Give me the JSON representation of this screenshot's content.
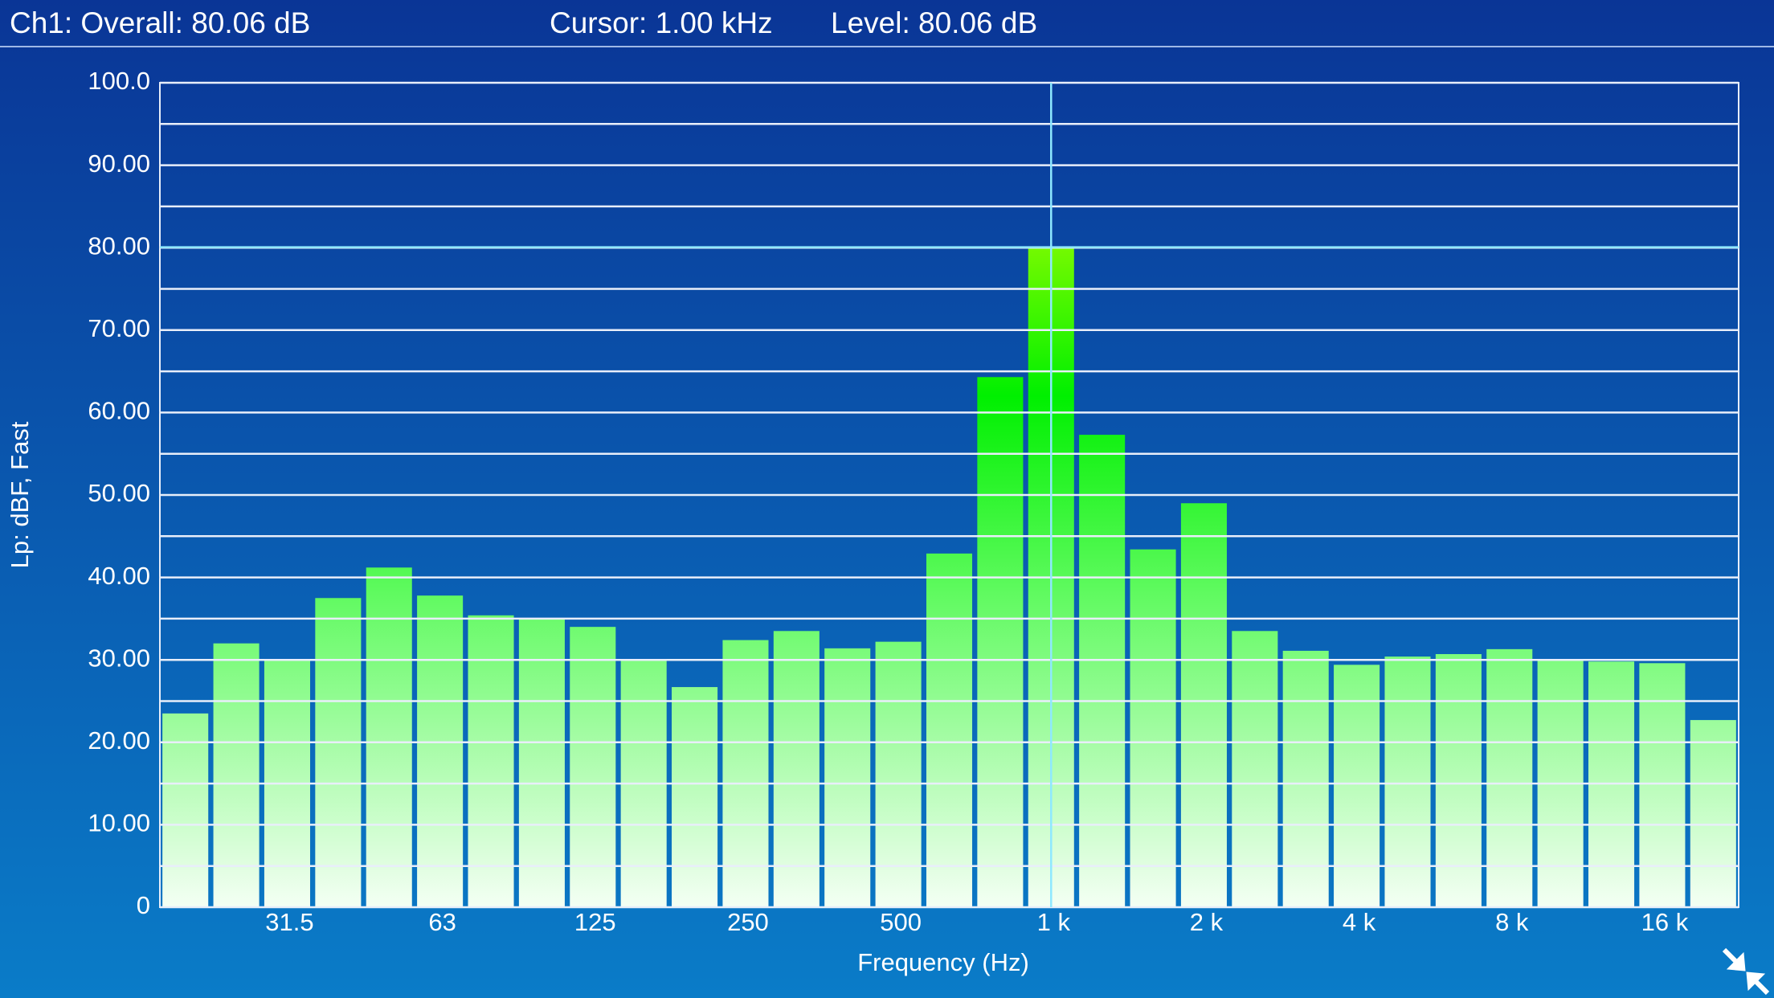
{
  "header": {
    "overall": "Ch1:  Overall: 80.06  dB",
    "cursor": "Cursor: 1.00 kHz",
    "level": "Level: 80.06 dB"
  },
  "chart_data": {
    "type": "bar",
    "x_label": "Frequency (Hz)",
    "y_label": "Lp: dBF, Fast",
    "categories": [
      null,
      null,
      "31.5",
      null,
      null,
      "63",
      null,
      null,
      "125",
      null,
      null,
      "250",
      null,
      null,
      "500",
      null,
      null,
      "1 k",
      null,
      null,
      "2 k",
      null,
      null,
      "4 k",
      null,
      null,
      "8 k",
      null,
      null,
      "16 k",
      null
    ],
    "values": [
      23.5,
      32,
      30,
      37.5,
      41.2,
      37.8,
      35.4,
      35,
      34,
      30,
      26.7,
      32.4,
      33.5,
      31.4,
      32.2,
      42.9,
      64.3,
      80.06,
      57.3,
      43.4,
      49,
      33.5,
      31.1,
      29.4,
      30.4,
      30.7,
      31.3,
      30,
      29.8,
      29.6,
      22.7
    ],
    "ylim": [
      0,
      100
    ],
    "yticks": [
      {
        "value": 0,
        "label": "0"
      },
      {
        "value": 10,
        "label": "10.00"
      },
      {
        "value": 20,
        "label": "20.00"
      },
      {
        "value": 30,
        "label": "30.00"
      },
      {
        "value": 40,
        "label": "40.00"
      },
      {
        "value": 50,
        "label": "50.00"
      },
      {
        "value": 60,
        "label": "60.00"
      },
      {
        "value": 70,
        "label": "70.00"
      },
      {
        "value": 80,
        "label": "80.00"
      },
      {
        "value": 90,
        "label": "90.00"
      },
      {
        "value": 100,
        "label": "100.0"
      }
    ],
    "minor_yticks": [
      5,
      15,
      25,
      35,
      45,
      55,
      65,
      75,
      85,
      95
    ],
    "grid": true,
    "cursor_index": 17
  }
}
